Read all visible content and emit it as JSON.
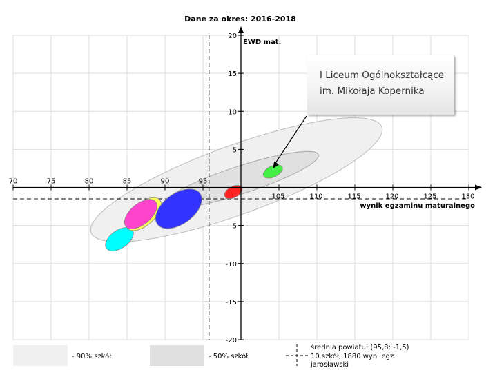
{
  "chart_data": {
    "type": "scatter",
    "title": "Dane za okres: 2016-2018",
    "xlabel": "wynik egzaminu maturalnego",
    "ylabel": "EWD mat.",
    "xlim": [
      70,
      130
    ],
    "ylim": [
      -20,
      20
    ],
    "x_ticks": [
      70,
      75,
      80,
      85,
      90,
      95,
      100,
      105,
      110,
      115,
      120,
      125,
      130
    ],
    "y_ticks": [
      -20,
      -15,
      -10,
      -5,
      0,
      5,
      10,
      15,
      20
    ],
    "grid": true,
    "reference_lines": {
      "x": 95.8,
      "y": -1.5
    },
    "regions": [
      {
        "name": "- 90% szkół",
        "color": "#f0f0f0",
        "center": [
          99.4,
          1.0
        ]
      },
      {
        "name": "- 50% szkół",
        "color": "#e0e0e0",
        "center": [
          100.0,
          1.0
        ]
      }
    ],
    "series": [
      {
        "color": "#00ffff",
        "x": 84.0,
        "y": -6.8
      },
      {
        "color": "#ffff55",
        "x": 87.2,
        "y": -3.5
      },
      {
        "color": "#ff44cc",
        "x": 86.8,
        "y": -3.5
      },
      {
        "color": "#3333ff",
        "x": 91.8,
        "y": -2.8
      },
      {
        "color": "#ff2222",
        "x": 99.0,
        "y": -0.6
      },
      {
        "color": "#44ee44",
        "x": 104.2,
        "y": 2.1
      }
    ],
    "legend": {
      "placement": "bottom",
      "mean_label": "średnia powiatu: (95,8; -1,5)",
      "count_label": "10 szkół, 1880 wyn. egz.",
      "area_label": "jarosławski"
    },
    "annotation": {
      "line1": "I Liceum Ogólnokształcące",
      "line2": "im. Mikołaja Kopernika",
      "target": [
        104.2,
        2.1
      ]
    }
  }
}
